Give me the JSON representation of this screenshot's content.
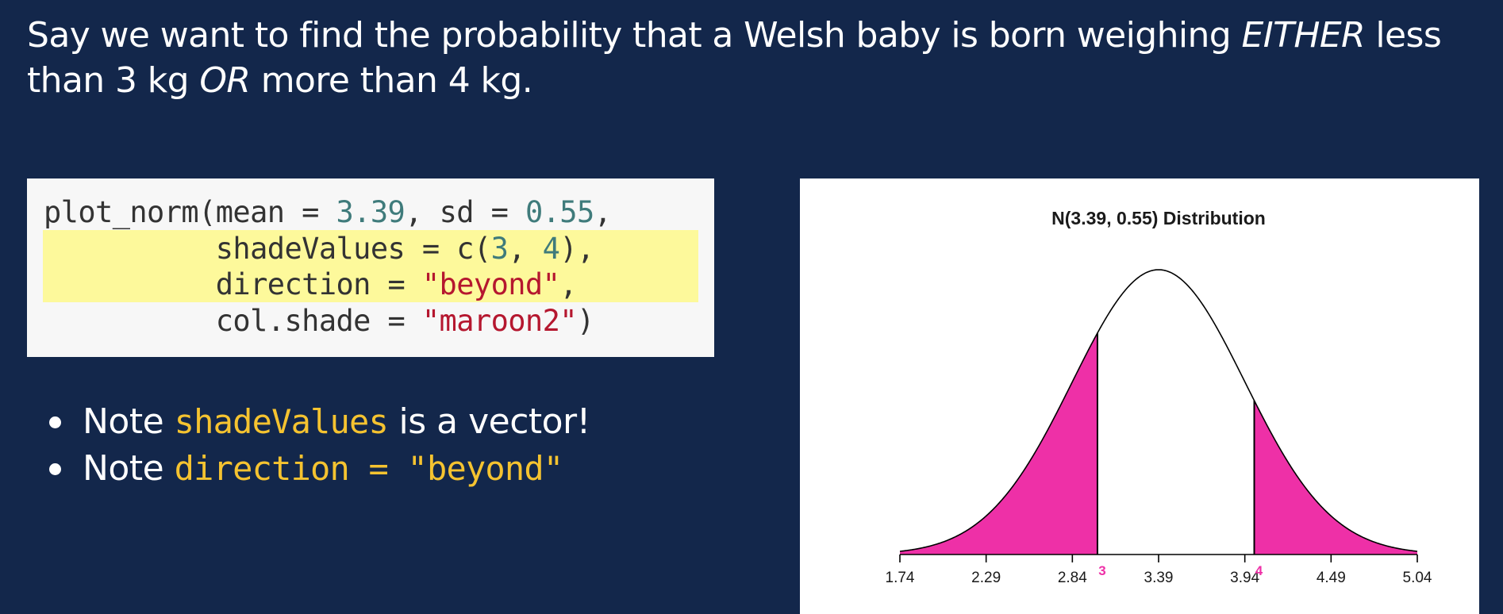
{
  "heading": {
    "part1": "Say we want to find the probability that a Welsh baby is born weighing ",
    "either": "EITHER",
    "part2": " less than 3 kg ",
    "or": "OR",
    "part3": " more than 4 kg."
  },
  "code": {
    "line1": {
      "fn": "plot_norm(mean = ",
      "mean": "3.39",
      "mid": ", sd = ",
      "sd": "0.55",
      "end": ","
    },
    "line2": {
      "pre": "          shadeValues = c(",
      "v1": "3",
      "sep": ", ",
      "v2": "4",
      "end": "),"
    },
    "line3": {
      "pre": "          direction = ",
      "str": "\"beyond\"",
      "end": ","
    },
    "line4": {
      "pre": "          col.shade = ",
      "str": "\"maroon2\"",
      "end": ")"
    }
  },
  "bullets": [
    {
      "pre": "Note ",
      "code": "shadeValues",
      "post": " is a vector!"
    },
    {
      "pre": "Note ",
      "code": "direction = \"beyond\"",
      "post": ""
    }
  ],
  "colors": {
    "background": "#13274b",
    "shade": "#ee30a7",
    "highlight": "#fdf99b",
    "inline_code": "#f5c330"
  },
  "chart_data": {
    "type": "area",
    "distribution": "normal",
    "title": "N(3.39, 0.55) Distribution",
    "mean": 3.39,
    "sd": 0.55,
    "shade_values": [
      3,
      4
    ],
    "shade_labels": [
      "3",
      "4"
    ],
    "direction": "beyond",
    "shade_color": "#ee30a7",
    "xlim": [
      1.74,
      5.04
    ],
    "x_ticks": [
      1.74,
      2.29,
      2.84,
      3.39,
      3.94,
      4.49,
      5.04
    ],
    "x_tick_labels": [
      "1.74",
      "2.29",
      "2.84",
      "3.39",
      "3.94",
      "4.49",
      "5.04"
    ],
    "xlabel": "",
    "ylabel": "",
    "grid": false,
    "legend": "none"
  }
}
